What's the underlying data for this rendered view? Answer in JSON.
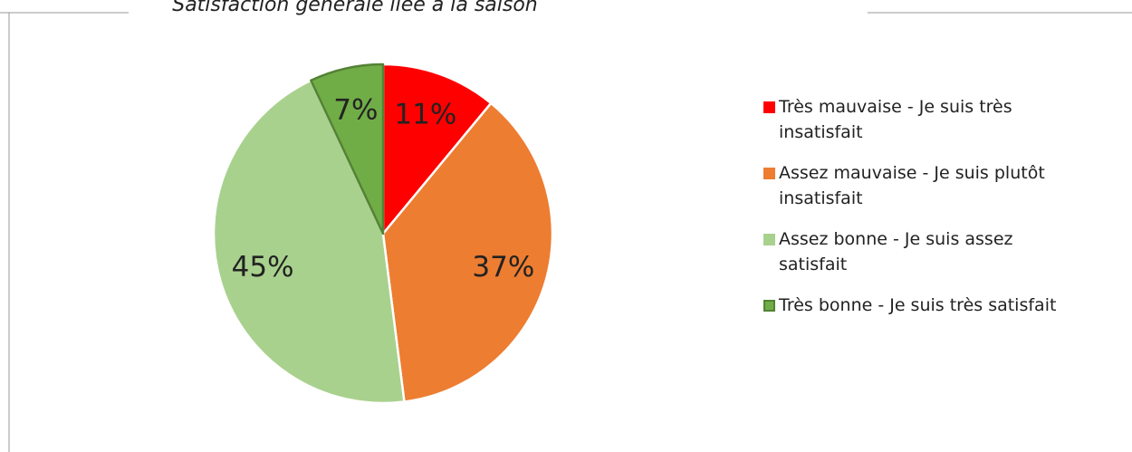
{
  "chart_data": {
    "type": "pie",
    "title": "Satisfaction générale liée à la saison",
    "categories": [
      "Très mauvaise - Je suis très insatisfait",
      "Assez mauvaise - Je suis plutôt insatisfait",
      "Assez bonne - Je suis assez satisfait",
      "Très bonne - Je suis très satisfait"
    ],
    "values": [
      11,
      37,
      45,
      7
    ],
    "value_labels": [
      "11%",
      "37%",
      "45%",
      "7%"
    ],
    "colors": [
      "#ff0000",
      "#ed7d31",
      "#a9d18e",
      "#70ad47"
    ],
    "legend": "right"
  }
}
